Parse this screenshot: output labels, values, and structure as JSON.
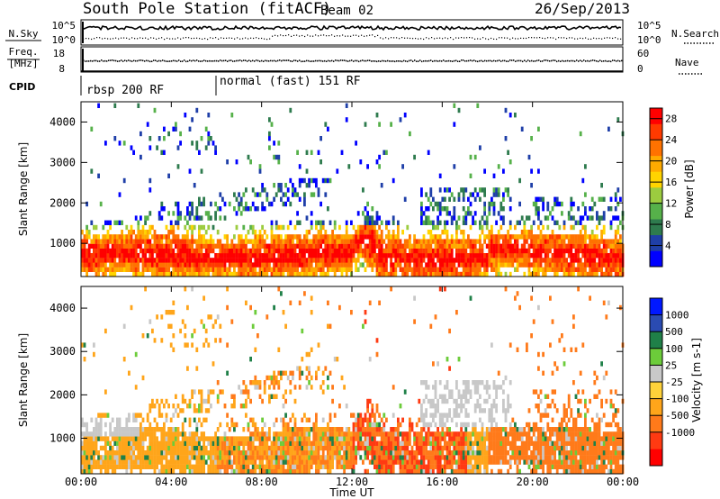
{
  "header": {
    "station": "South Pole Station (fitACF)",
    "beam": "Beam 02",
    "date": "26/Sep/2013"
  },
  "panels": {
    "noise": {
      "left_label": "N.Sky",
      "ticks_left": [
        "10^5",
        "10^0"
      ],
      "ticks_right": [
        "10^5",
        "10^0"
      ],
      "right_label": "N.Search"
    },
    "freq": {
      "left_label_1": "Freq.",
      "left_label_2": "[MHz]",
      "ticks_left": [
        "18",
        "8"
      ],
      "ticks_right": [
        "60",
        "0"
      ],
      "right_label": "Nave"
    },
    "cpid": {
      "label": "CPID",
      "modes": [
        "rbsp 200 RF",
        "normal (fast) 151 RF"
      ],
      "switch_time_h": 6
    }
  },
  "colors": {
    "power_scale": [
      "#0000ff",
      "#1f3fa8",
      "#2e7b4e",
      "#56b14a",
      "#9ccc3f",
      "#ffd400",
      "#ffaa00",
      "#ff7200",
      "#ff3a00",
      "#ff0000"
    ],
    "velocity_scale": [
      "#0018ff",
      "#2a4bb2",
      "#1f8048",
      "#6ccc3a",
      "#c8c8c8",
      "#ffd23a",
      "#ffa51a",
      "#ff7a1a",
      "#ff3a12",
      "#ff0000"
    ]
  },
  "chart_data": [
    {
      "type": "heatmap",
      "title": "Power",
      "xlabel": "Time UT",
      "ylabel": "Slant Range [km]",
      "xlim": [
        0,
        24
      ],
      "ylim": [
        180,
        4500
      ],
      "x_ticks": [
        "00:00",
        "04:00",
        "08:00",
        "12:00",
        "16:00",
        "20:00",
        "00:00"
      ],
      "y_ticks": [
        "1000",
        "2000",
        "3000",
        "4000"
      ],
      "colorbar_label": "Power [dB]",
      "colorbar_ticks": [
        "4",
        "8",
        "12",
        "16",
        "20",
        "24",
        "28"
      ],
      "colorbar_range": [
        0,
        30
      ]
    },
    {
      "type": "heatmap",
      "title": "Velocity",
      "xlabel": "Time UT",
      "ylabel": "Slant Range [km]",
      "xlim": [
        0,
        24
      ],
      "ylim": [
        180,
        4500
      ],
      "x_ticks": [
        "00:00",
        "04:00",
        "08:00",
        "12:00",
        "16:00",
        "20:00",
        "00:00"
      ],
      "y_ticks": [
        "1000",
        "2000",
        "3000",
        "4000"
      ],
      "colorbar_label": "Velocity [m s-1]",
      "colorbar_ticks": [
        "1000",
        "500",
        "100",
        "25",
        "-25",
        "-100",
        "-500",
        "-1000"
      ]
    }
  ]
}
